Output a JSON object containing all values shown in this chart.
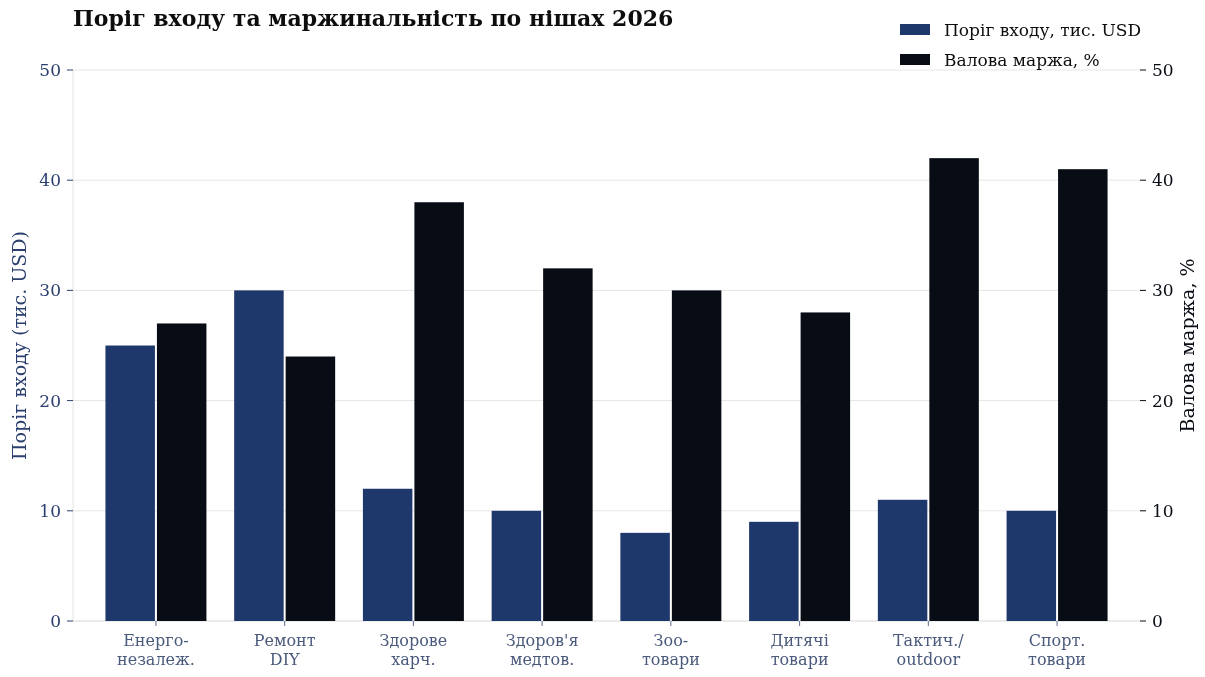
{
  "chart_data": {
    "type": "bar",
    "title": "Поріг входу та маржинальність по нішах 2026",
    "categories": [
      "Енерго-\nнезалеж.",
      "Ремонт\nDIY",
      "Здорове\nхарч.",
      "Здоров'я\nмедтов.",
      "Зоо-\nтовари",
      "Дитячі\nтовари",
      "Тактич./\noutdoor",
      "Спорт.\nтовари"
    ],
    "series": [
      {
        "name": "Поріг входу, тис. USD",
        "color": "#1f386b",
        "values": [
          25,
          30,
          12,
          10,
          8,
          9,
          11,
          10
        ]
      },
      {
        "name": "Валова маржа, %",
        "color": "#080c14",
        "values": [
          27,
          24,
          38,
          32,
          30,
          28,
          42,
          41
        ],
        "axis": "y2"
      }
    ],
    "ylabel": "Поріг входу (тис. USD)",
    "y2label": "Валова маржа, %",
    "ylim": [
      0,
      50
    ],
    "yticks": [
      0,
      10,
      20,
      30,
      40,
      50
    ],
    "y2lim": [
      0,
      50
    ],
    "y2ticks": [
      0,
      10,
      20,
      30,
      40,
      50
    ],
    "grid": "y",
    "legend": "top right"
  }
}
